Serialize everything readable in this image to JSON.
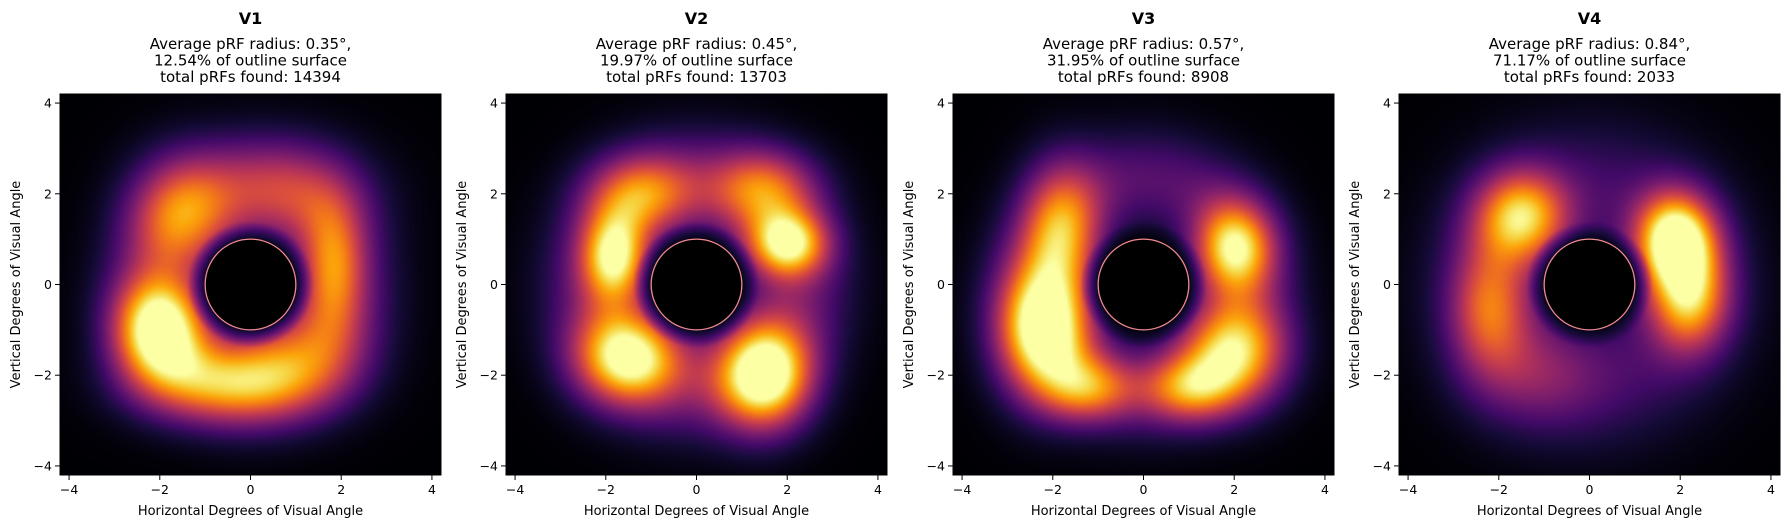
{
  "colors": {
    "colormap": "inferno",
    "background": "#000000",
    "fovea_circle": "#f08a8a",
    "fovea_fill": "#000000"
  },
  "chart_data": [
    {
      "type": "heatmap",
      "title": "V1",
      "subtitle": [
        "Average pRF radius: 0.35°,",
        "12.54% of outline surface",
        "total pRFs found: 14394"
      ],
      "xlabel": "Horizontal Degrees of Visual Angle",
      "ylabel": "Vertical Degrees of Visual Angle",
      "xlim": [
        -4.2,
        4.2
      ],
      "ylim": [
        -4.2,
        4.2
      ],
      "xticks": [
        -4,
        -2,
        0,
        2,
        4
      ],
      "yticks": [
        -4,
        -2,
        0,
        2,
        4
      ],
      "fovea_radius": 1.0,
      "hotspots": [
        {
          "x": -2.0,
          "y": -1.0,
          "sx": 0.7,
          "sy": 0.8,
          "v": 1.0
        },
        {
          "x": -1.5,
          "y": 1.5,
          "sx": 0.8,
          "sy": 0.9,
          "v": 0.55
        },
        {
          "x": -0.5,
          "y": -2.2,
          "sx": 1.3,
          "sy": 0.6,
          "v": 0.6
        },
        {
          "x": 1.8,
          "y": 0.3,
          "sx": 0.5,
          "sy": 1.0,
          "v": 0.55
        },
        {
          "x": 0.8,
          "y": 2.0,
          "sx": 1.2,
          "sy": 0.8,
          "v": 0.35
        },
        {
          "x": 1.0,
          "y": -1.5,
          "sx": 1.0,
          "sy": 0.8,
          "v": 0.4
        }
      ],
      "ring": {
        "r": 2.2,
        "width": 1.1,
        "v": 0.22
      }
    },
    {
      "type": "heatmap",
      "title": "V2",
      "subtitle": [
        "Average pRF radius: 0.45°,",
        "19.97% of outline surface",
        "total pRFs found: 13703"
      ],
      "xlabel": "Horizontal Degrees of Visual Angle",
      "ylabel": "Vertical Degrees of Visual Angle",
      "xlim": [
        -4.2,
        4.2
      ],
      "ylim": [
        -4.2,
        4.2
      ],
      "xticks": [
        -4,
        -2,
        0,
        2,
        4
      ],
      "yticks": [
        -4,
        -2,
        0,
        2,
        4
      ],
      "fovea_radius": 1.0,
      "hotspots": [
        {
          "x": 1.5,
          "y": -2.0,
          "sx": 0.7,
          "sy": 0.8,
          "v": 1.0
        },
        {
          "x": -1.5,
          "y": -1.6,
          "sx": 0.8,
          "sy": 0.7,
          "v": 0.85
        },
        {
          "x": -1.8,
          "y": 0.6,
          "sx": 0.5,
          "sy": 0.7,
          "v": 0.8
        },
        {
          "x": 2.0,
          "y": 0.9,
          "sx": 0.6,
          "sy": 0.5,
          "v": 0.8
        },
        {
          "x": -1.2,
          "y": 2.0,
          "sx": 0.8,
          "sy": 0.6,
          "v": 0.5
        },
        {
          "x": 1.5,
          "y": 2.1,
          "sx": 0.8,
          "sy": 0.6,
          "v": 0.5
        }
      ],
      "ring": {
        "r": 2.2,
        "width": 1.2,
        "v": 0.3
      }
    },
    {
      "type": "heatmap",
      "title": "V3",
      "subtitle": [
        "Average pRF radius: 0.57°,",
        "31.95% of outline surface",
        "total pRFs found: 8908"
      ],
      "xlabel": "Horizontal Degrees of Visual Angle",
      "ylabel": "Vertical Degrees of Visual Angle",
      "xlim": [
        -4.2,
        4.2
      ],
      "ylim": [
        -4.2,
        4.2
      ],
      "xticks": [
        -4,
        -2,
        0,
        2,
        4
      ],
      "yticks": [
        -4,
        -2,
        0,
        2,
        4
      ],
      "fovea_radius": 1.0,
      "hotspots": [
        {
          "x": -2.2,
          "y": -1.0,
          "sx": 0.7,
          "sy": 1.0,
          "v": 1.0
        },
        {
          "x": -1.8,
          "y": 1.2,
          "sx": 0.6,
          "sy": 1.0,
          "v": 0.6
        },
        {
          "x": 2.0,
          "y": 0.8,
          "sx": 0.6,
          "sy": 0.7,
          "v": 0.8
        },
        {
          "x": 2.0,
          "y": -1.5,
          "sx": 0.8,
          "sy": 0.8,
          "v": 0.75
        },
        {
          "x": 1.0,
          "y": -2.3,
          "sx": 0.7,
          "sy": 0.5,
          "v": 0.5
        },
        {
          "x": -1.2,
          "y": -2.3,
          "sx": 0.7,
          "sy": 0.5,
          "v": 0.5
        }
      ],
      "ring": {
        "r": 2.3,
        "width": 1.1,
        "v": 0.25
      }
    },
    {
      "type": "heatmap",
      "title": "V4",
      "subtitle": [
        "Average pRF radius: 0.84°,",
        "71.17% of outline surface",
        "total pRFs found: 2033"
      ],
      "xlabel": "Horizontal Degrees of Visual Angle",
      "ylabel": "Vertical Degrees of Visual Angle",
      "xlim": [
        -4.2,
        4.2
      ],
      "ylim": [
        -4.2,
        4.2
      ],
      "xticks": [
        -4,
        -2,
        0,
        2,
        4
      ],
      "yticks": [
        -4,
        -2,
        0,
        2,
        4
      ],
      "fovea_radius": 1.0,
      "hotspots": [
        {
          "x": 1.9,
          "y": 1.0,
          "sx": 0.6,
          "sy": 0.7,
          "v": 1.0
        },
        {
          "x": 2.2,
          "y": -0.3,
          "sx": 0.6,
          "sy": 0.8,
          "v": 0.7
        },
        {
          "x": -1.5,
          "y": 1.5,
          "sx": 0.7,
          "sy": 0.7,
          "v": 0.75
        },
        {
          "x": -2.2,
          "y": -0.5,
          "sx": 0.6,
          "sy": 1.0,
          "v": 0.5
        },
        {
          "x": -1.2,
          "y": -2.0,
          "sx": 1.0,
          "sy": 0.8,
          "v": 0.2
        }
      ],
      "ring": {
        "r": 2.0,
        "width": 1.6,
        "v": 0.2
      }
    }
  ]
}
